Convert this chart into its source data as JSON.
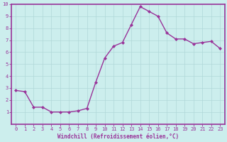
{
  "x": [
    0,
    1,
    2,
    3,
    4,
    5,
    6,
    7,
    8,
    9,
    10,
    11,
    12,
    13,
    14,
    15,
    16,
    17,
    18,
    19,
    20,
    21,
    22,
    23
  ],
  "y": [
    2.8,
    2.7,
    1.4,
    1.4,
    1.0,
    1.0,
    1.0,
    1.1,
    1.3,
    3.5,
    5.5,
    6.5,
    6.8,
    8.3,
    9.8,
    9.4,
    9.0,
    7.6,
    7.1,
    7.1,
    6.7,
    6.8,
    6.9,
    6.3
  ],
  "line_color": "#993399",
  "marker": "D",
  "marker_size": 2.0,
  "bg_color": "#cceeed",
  "grid_color": "#b0d8d8",
  "xlabel": "Windchill (Refroidissement éolien,°C)",
  "xlabel_color": "#993399",
  "axis_color": "#993399",
  "tick_color": "#993399",
  "ylim": [
    0,
    10
  ],
  "xlim": [
    -0.5,
    23.5
  ],
  "yticks": [
    1,
    2,
    3,
    4,
    5,
    6,
    7,
    8,
    9,
    10
  ],
  "xticks": [
    0,
    1,
    2,
    3,
    4,
    5,
    6,
    7,
    8,
    9,
    10,
    11,
    12,
    13,
    14,
    15,
    16,
    17,
    18,
    19,
    20,
    21,
    22,
    23
  ],
  "tick_fontsize": 5,
  "xlabel_fontsize": 5.5,
  "linewidth": 1.0,
  "spine_linewidth": 1.2
}
